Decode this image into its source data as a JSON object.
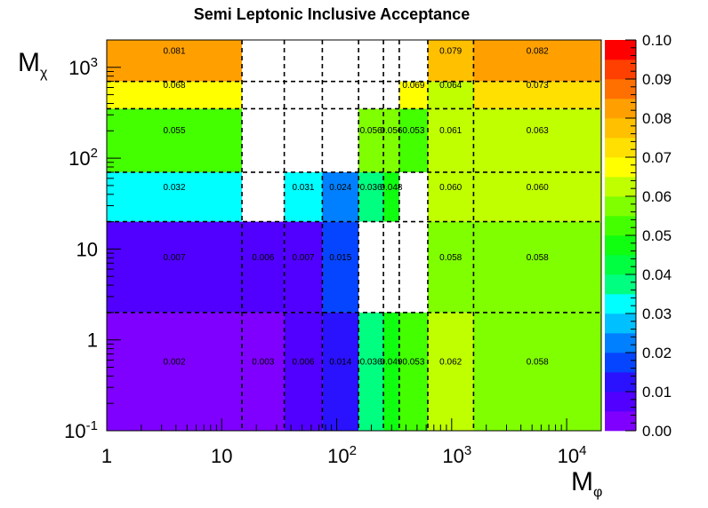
{
  "chart_data": {
    "type": "heatmap",
    "title": "Semi Leptonic Inclusive Acceptance",
    "xlabel_main": "M",
    "xlabel_sub": "φ",
    "ylabel_main": "M",
    "ylabel_sub": "χ",
    "x_scale": "log",
    "y_scale": "log",
    "xlim": [
      1,
      20000
    ],
    "ylim": [
      0.1,
      2000
    ],
    "x_ticks": [
      {
        "v": 1,
        "base": "1",
        "exp": ""
      },
      {
        "v": 10,
        "base": "10",
        "exp": ""
      },
      {
        "v": 100,
        "base": "10",
        "exp": "2"
      },
      {
        "v": 1000,
        "base": "10",
        "exp": "3"
      },
      {
        "v": 10000,
        "base": "10",
        "exp": "4"
      }
    ],
    "y_ticks": [
      {
        "v": 0.1,
        "base": "10",
        "exp": "-1"
      },
      {
        "v": 1,
        "base": "1",
        "exp": ""
      },
      {
        "v": 10,
        "base": "10",
        "exp": ""
      },
      {
        "v": 100,
        "base": "10",
        "exp": "2"
      },
      {
        "v": 1000,
        "base": "10",
        "exp": "3"
      }
    ],
    "x_edges": [
      1,
      15,
      35,
      75,
      155,
      255,
      350,
      620,
      1550,
      20000
    ],
    "y_edges": [
      0.1,
      2,
      20,
      70,
      350,
      700,
      2000
    ],
    "cells": [
      {
        "xi": 0,
        "yi": 0,
        "value": 0.002,
        "label": "0.002"
      },
      {
        "xi": 1,
        "yi": 0,
        "value": 0.003,
        "label": "0.003"
      },
      {
        "xi": 2,
        "yi": 0,
        "value": 0.006,
        "label": "0.006"
      },
      {
        "xi": 3,
        "yi": 0,
        "value": 0.014,
        "label": "0.014"
      },
      {
        "xi": 4,
        "yi": 0,
        "value": 0.036,
        "label": "0.036"
      },
      {
        "xi": 5,
        "yi": 0,
        "value": 0.049,
        "label": "0.049"
      },
      {
        "xi": 6,
        "yi": 0,
        "value": 0.053,
        "label": "0.053"
      },
      {
        "xi": 7,
        "yi": 0,
        "value": 0.062,
        "label": "0.062"
      },
      {
        "xi": 8,
        "yi": 0,
        "value": 0.058,
        "label": "0.058"
      },
      {
        "xi": 0,
        "yi": 1,
        "value": 0.007,
        "label": "0.007"
      },
      {
        "xi": 1,
        "yi": 1,
        "value": 0.006,
        "label": "0.006"
      },
      {
        "xi": 2,
        "yi": 1,
        "value": 0.007,
        "label": "0.007"
      },
      {
        "xi": 3,
        "yi": 1,
        "value": 0.015,
        "label": "0.015"
      },
      {
        "xi": 7,
        "yi": 1,
        "value": 0.058,
        "label": "0.058"
      },
      {
        "xi": 8,
        "yi": 1,
        "value": 0.058,
        "label": "0.058"
      },
      {
        "xi": 0,
        "yi": 2,
        "value": 0.032,
        "label": "0.032"
      },
      {
        "xi": 2,
        "yi": 2,
        "value": 0.031,
        "label": "0.031"
      },
      {
        "xi": 3,
        "yi": 2,
        "value": 0.024,
        "label": "0.024"
      },
      {
        "xi": 4,
        "yi": 2,
        "value": 0.036,
        "label": "0.036"
      },
      {
        "xi": 5,
        "yi": 2,
        "value": 0.048,
        "label": "0.048"
      },
      {
        "xi": 7,
        "yi": 2,
        "value": 0.06,
        "label": "0.060"
      },
      {
        "xi": 8,
        "yi": 2,
        "value": 0.06,
        "label": "0.060"
      },
      {
        "xi": 0,
        "yi": 3,
        "value": 0.055,
        "label": "0.055"
      },
      {
        "xi": 4,
        "yi": 3,
        "value": 0.056,
        "label": "0.056"
      },
      {
        "xi": 5,
        "yi": 3,
        "value": 0.056,
        "label": "0.056"
      },
      {
        "xi": 6,
        "yi": 3,
        "value": 0.053,
        "label": "0.053"
      },
      {
        "xi": 7,
        "yi": 3,
        "value": 0.061,
        "label": "0.061"
      },
      {
        "xi": 8,
        "yi": 3,
        "value": 0.063,
        "label": "0.063"
      },
      {
        "xi": 0,
        "yi": 4,
        "value": 0.068,
        "label": "0.068"
      },
      {
        "xi": 6,
        "yi": 4,
        "value": 0.069,
        "label": "0.069"
      },
      {
        "xi": 7,
        "yi": 4,
        "value": 0.064,
        "label": "0.064"
      },
      {
        "xi": 8,
        "yi": 4,
        "value": 0.073,
        "label": "0.073"
      },
      {
        "xi": 0,
        "yi": 5,
        "value": 0.081,
        "label": "0.081"
      },
      {
        "xi": 7,
        "yi": 5,
        "value": 0.079,
        "label": "0.079"
      },
      {
        "xi": 8,
        "yi": 5,
        "value": 0.082,
        "label": "0.082"
      }
    ],
    "z_range": [
      0,
      0.1
    ],
    "colorbar_ticks": [
      "0.00",
      "0.01",
      "0.02",
      "0.03",
      "0.04",
      "0.05",
      "0.06",
      "0.07",
      "0.08",
      "0.09",
      "0.10"
    ],
    "palette": [
      "#7f00ff",
      "#5100ff",
      "#2a12ff",
      "#0645ff",
      "#0080ff",
      "#00c0ff",
      "#00ffff",
      "#00ff80",
      "#00ff40",
      "#10ff10",
      "#44ff00",
      "#80ff00",
      "#c0ff00",
      "#ffff00",
      "#ffe000",
      "#ffc000",
      "#ffa000",
      "#ff7000",
      "#ff4000",
      "#ff0000"
    ],
    "grid": "dashed bin boundaries"
  }
}
